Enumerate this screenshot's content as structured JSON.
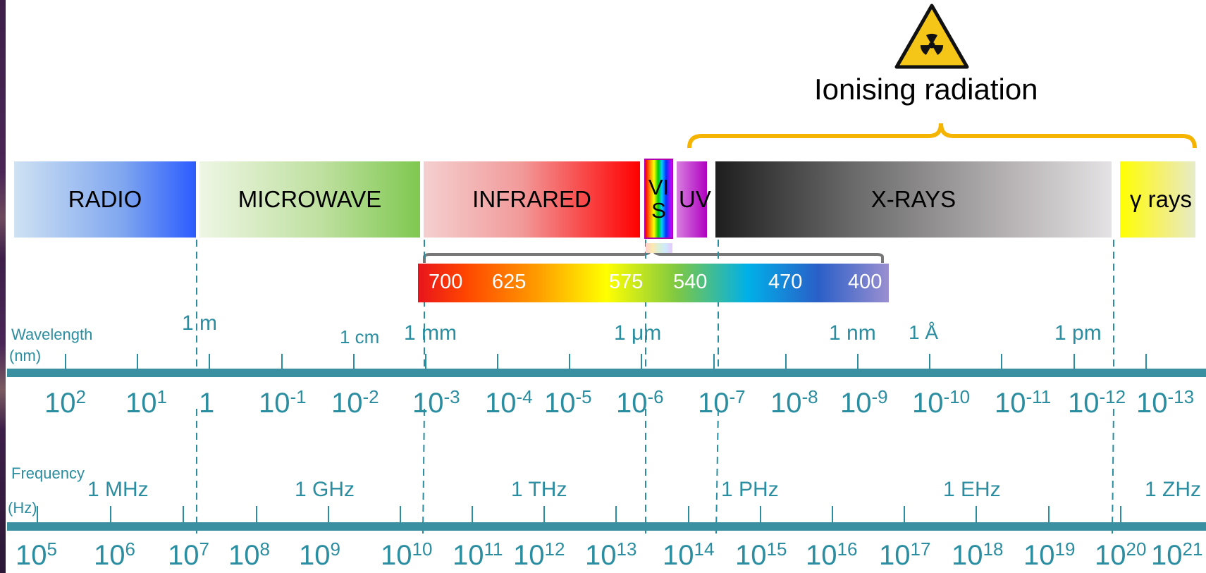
{
  "hazard": {
    "icon": "radiation-warning-icon",
    "label": "Ionising radiation",
    "colors": {
      "bracket": "#f5b400",
      "icon_fill": "#f5c518"
    }
  },
  "bands": [
    {
      "label": "RADIO",
      "color": "#2b5cff"
    },
    {
      "label": "MICROWAVE",
      "color": "#7fc850"
    },
    {
      "label": "INFRARED",
      "color": "#ff0000"
    },
    {
      "label": "VIS",
      "color": "rainbow"
    },
    {
      "label": "UV",
      "color": "#b000c0"
    },
    {
      "label": "X-RAYS",
      "color": "#1e1e1e"
    },
    {
      "label": "γ rays",
      "color": "#ffff00"
    }
  ],
  "visible_spectrum": {
    "values": [
      "700",
      "625",
      "575",
      "540",
      "470",
      "400"
    ]
  },
  "wavelength_axis": {
    "title_line1": "Wavelength",
    "title_line2": "(nm)",
    "units": [
      "1 m",
      "1 cm",
      "1 mm",
      "1 μm",
      "1 nm",
      "1 Å",
      "1 pm"
    ],
    "exponents": [
      {
        "base": "10",
        "exp": "2"
      },
      {
        "base": "10",
        "exp": "1"
      },
      {
        "base": "1",
        "exp": ""
      },
      {
        "base": "10",
        "exp": "-1"
      },
      {
        "base": "10",
        "exp": "-2"
      },
      {
        "base": "10",
        "exp": "-3"
      },
      {
        "base": "10",
        "exp": "-4"
      },
      {
        "base": "10",
        "exp": "-5"
      },
      {
        "base": "10",
        "exp": "-6"
      },
      {
        "base": "10",
        "exp": "-7"
      },
      {
        "base": "10",
        "exp": "-8"
      },
      {
        "base": "10",
        "exp": "-9"
      },
      {
        "base": "10",
        "exp": "-10"
      },
      {
        "base": "10",
        "exp": "-11"
      },
      {
        "base": "10",
        "exp": "-12"
      },
      {
        "base": "10",
        "exp": "-13"
      }
    ]
  },
  "frequency_axis": {
    "title_line1": "Frequency",
    "title_line2": "(Hz)",
    "units": [
      "1 MHz",
      "1 GHz",
      "1 THz",
      "1 PHz",
      "1 EHz",
      "1 ZHz"
    ],
    "exponents": [
      {
        "base": "10",
        "exp": "5"
      },
      {
        "base": "10",
        "exp": "6"
      },
      {
        "base": "10",
        "exp": "7"
      },
      {
        "base": "10",
        "exp": "8"
      },
      {
        "base": "10",
        "exp": "9"
      },
      {
        "base": "10",
        "exp": "10"
      },
      {
        "base": "10",
        "exp": "11"
      },
      {
        "base": "10",
        "exp": "12"
      },
      {
        "base": "10",
        "exp": "13"
      },
      {
        "base": "10",
        "exp": "14"
      },
      {
        "base": "10",
        "exp": "15"
      },
      {
        "base": "10",
        "exp": "16"
      },
      {
        "base": "10",
        "exp": "17"
      },
      {
        "base": "10",
        "exp": "18"
      },
      {
        "base": "10",
        "exp": "19"
      },
      {
        "base": "10",
        "exp": "20"
      },
      {
        "base": "10",
        "exp": "21"
      }
    ]
  },
  "colors": {
    "axis": "#3a8fa0",
    "text": "#2b8da0"
  }
}
